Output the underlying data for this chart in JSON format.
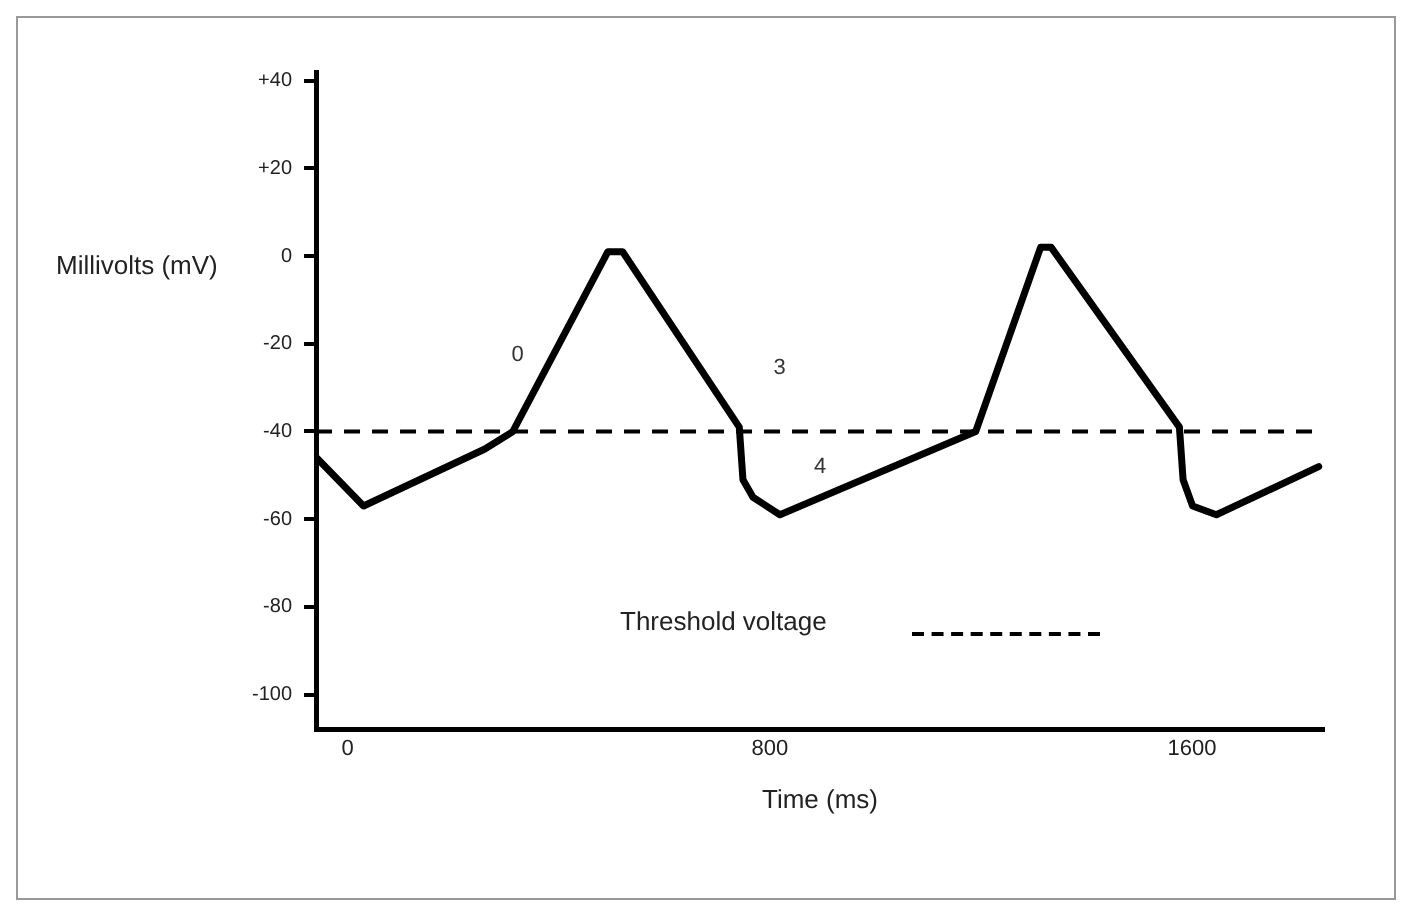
{
  "chart_data": {
    "type": "line",
    "xlabel": "Time (ms)",
    "ylabel": "Millivolts (mV)",
    "x": [
      -59,
      30,
      260,
      313,
      493,
      521,
      742,
      749,
      768,
      819,
      1190,
      1313,
      1333,
      1576,
      1583,
      1601,
      1646,
      1840
    ],
    "series": [
      {
        "color": "#000000",
        "values": [
          -46,
          -57,
          -44,
          -40,
          1,
          1,
          -39,
          -51,
          -55,
          -59,
          -40,
          2,
          2,
          -39,
          -51,
          -57,
          -59,
          -48
        ]
      }
    ],
    "xlim": [
      -60,
      1850
    ],
    "ylim": [
      -108,
      42
    ],
    "xticks": [
      0,
      800,
      1600
    ],
    "yticks": [
      {
        "value": 40,
        "label": "+40"
      },
      {
        "value": 20,
        "label": "+20"
      },
      0,
      -20,
      -40,
      -60,
      -80,
      -100
    ],
    "ref_lines": [
      {
        "axis": "y",
        "value": -40,
        "label": "Threshold voltage",
        "color": "#000000",
        "line_style": "dashed"
      }
    ],
    "annotations": [
      "0",
      "3",
      "4"
    ],
    "grid": false,
    "legend": false,
    "marker": "none",
    "line_style": "solid"
  }
}
